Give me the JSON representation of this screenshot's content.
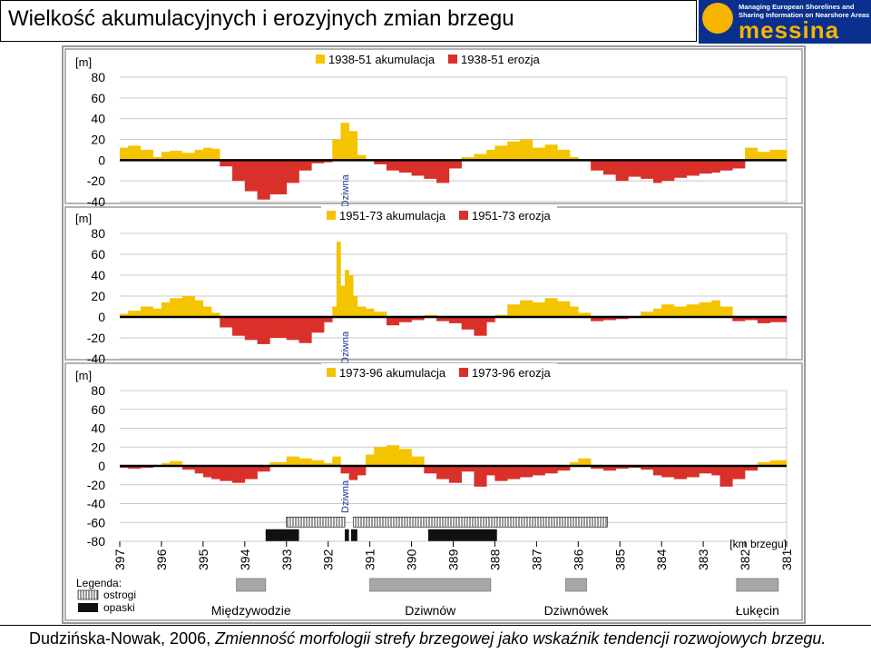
{
  "header": {
    "title": "Wielkość akumulacyjnych i erozyjnych zmian brzegu"
  },
  "logo": {
    "line1": "Managing European Shorelines and",
    "line2": "Sharing Information on Nearshore Areas",
    "word": "messina",
    "colors": {
      "background": "#0a2f8c",
      "accent": "#f5b400"
    }
  },
  "caption": {
    "author": "Dudzińska-Nowak, 2006, ",
    "title": "Zmienność morfologii strefy brzegowej jako wskaźnik tendencji rozwojowych brzegu."
  },
  "chart_data": [
    {
      "type": "area",
      "ylabel": "[m]",
      "ylim": [
        -40,
        80
      ],
      "yticks": [
        80,
        60,
        40,
        20,
        0,
        -20,
        -40
      ],
      "xlim": [
        397,
        381
      ],
      "grid": true,
      "legend": [
        "1938-51 akumulacja",
        "1938-51 erozja"
      ],
      "colors": {
        "accumulation": "#f5c400",
        "erosion": "#d9302a"
      },
      "annotation": "Dziwna",
      "annotation_km": 391.6,
      "x": [
        397,
        396.8,
        396.5,
        396.2,
        396,
        395.8,
        395.5,
        395.2,
        395,
        394.8,
        394.6,
        394.3,
        394,
        393.7,
        393.4,
        393,
        392.7,
        392.4,
        392.1,
        391.9,
        391.7,
        391.5,
        391.3,
        391.1,
        390.9,
        390.6,
        390.3,
        390,
        389.7,
        389.4,
        389.1,
        388.8,
        388.5,
        388.2,
        388,
        387.7,
        387.4,
        387.1,
        386.8,
        386.5,
        386.2,
        386,
        385.7,
        385.4,
        385.1,
        384.8,
        384.5,
        384.2,
        384,
        383.7,
        383.4,
        383.1,
        382.8,
        382.6,
        382.3,
        382,
        381.7,
        381.4,
        381
      ],
      "values": [
        12,
        14,
        10,
        3,
        8,
        9,
        7,
        10,
        12,
        11,
        -6,
        -20,
        -30,
        -38,
        -33,
        -22,
        -10,
        -3,
        -2,
        20,
        36,
        28,
        5,
        0,
        -4,
        -10,
        -12,
        -15,
        -18,
        -22,
        -8,
        3,
        6,
        10,
        14,
        18,
        20,
        12,
        15,
        10,
        3,
        0,
        -10,
        -14,
        -20,
        -16,
        -18,
        -22,
        -20,
        -17,
        -15,
        -13,
        -12,
        -10,
        -8,
        12,
        8,
        10,
        16
      ]
    },
    {
      "type": "area",
      "ylabel": "[m]",
      "ylim": [
        -40,
        80
      ],
      "yticks": [
        80,
        60,
        40,
        20,
        0,
        -20,
        -40
      ],
      "xlim": [
        397,
        381
      ],
      "grid": true,
      "legend": [
        "1951-73 akumulacja",
        "1951-73 erozja"
      ],
      "colors": {
        "accumulation": "#f5c400",
        "erosion": "#d9302a"
      },
      "annotation": "Dziwna",
      "annotation_km": 391.6,
      "x": [
        397,
        396.8,
        396.5,
        396.2,
        396,
        395.8,
        395.5,
        395.2,
        395,
        394.8,
        394.6,
        394.3,
        394,
        393.7,
        393.4,
        393,
        392.7,
        392.4,
        392.1,
        391.9,
        391.8,
        391.7,
        391.6,
        391.5,
        391.4,
        391.3,
        391.1,
        390.9,
        390.6,
        390.3,
        390,
        389.7,
        389.4,
        389.1,
        388.8,
        388.5,
        388.2,
        388,
        387.7,
        387.4,
        387.1,
        386.8,
        386.5,
        386.2,
        386,
        385.7,
        385.4,
        385.1,
        384.8,
        384.5,
        384.2,
        384,
        383.7,
        383.4,
        383.1,
        382.8,
        382.6,
        382.3,
        382,
        381.7,
        381.4,
        381
      ],
      "values": [
        3,
        6,
        10,
        8,
        14,
        18,
        20,
        16,
        10,
        4,
        -10,
        -18,
        -22,
        -26,
        -20,
        -22,
        -25,
        -15,
        -5,
        10,
        72,
        30,
        45,
        40,
        20,
        10,
        8,
        5,
        -8,
        -5,
        -3,
        2,
        -4,
        -6,
        -12,
        -18,
        -5,
        2,
        12,
        16,
        14,
        18,
        15,
        10,
        4,
        -4,
        -3,
        -2,
        -1,
        5,
        8,
        12,
        10,
        12,
        14,
        16,
        10,
        -4,
        -3,
        -6,
        -5,
        -6
      ]
    },
    {
      "type": "area",
      "ylabel": "[m]",
      "ylim": [
        -80,
        80
      ],
      "yticks": [
        80,
        60,
        40,
        20,
        0,
        -20,
        -40,
        -60,
        -80
      ],
      "xlim": [
        397,
        381
      ],
      "xlabel": "[km brzegu]",
      "xticks": [
        397,
        396,
        395,
        394,
        393,
        392,
        391,
        390,
        389,
        388,
        387,
        386,
        385,
        384,
        383,
        382,
        381
      ],
      "grid": true,
      "legend": [
        "1973-96 akumulacja",
        "1973-96 erozja"
      ],
      "colors": {
        "accumulation": "#f5c400",
        "erosion": "#d9302a"
      },
      "annotation": "Dziwna",
      "annotation_km": 391.6,
      "x": [
        397,
        396.8,
        396.5,
        396.2,
        396,
        395.8,
        395.5,
        395.2,
        395,
        394.8,
        394.6,
        394.3,
        394,
        393.7,
        393.4,
        393,
        392.7,
        392.4,
        392.1,
        391.9,
        391.7,
        391.5,
        391.3,
        391.1,
        390.9,
        390.6,
        390.3,
        390,
        389.7,
        389.4,
        389.1,
        388.8,
        388.5,
        388.2,
        388,
        387.7,
        387.4,
        387.1,
        386.8,
        386.5,
        386.2,
        386,
        385.7,
        385.4,
        385.1,
        384.8,
        384.5,
        384.2,
        384,
        383.7,
        383.4,
        383.1,
        382.8,
        382.6,
        382.3,
        382,
        381.7,
        381.4,
        381
      ],
      "values": [
        -2,
        -3,
        -2,
        0,
        3,
        5,
        -4,
        -8,
        -12,
        -14,
        -16,
        -18,
        -14,
        -6,
        4,
        10,
        8,
        6,
        3,
        10,
        -8,
        -15,
        -10,
        12,
        20,
        22,
        18,
        10,
        -8,
        -14,
        -18,
        -6,
        -22,
        -10,
        -16,
        -14,
        -12,
        -10,
        -8,
        -5,
        4,
        8,
        -3,
        -5,
        -3,
        -2,
        -4,
        -10,
        -12,
        -14,
        -12,
        -8,
        -10,
        -22,
        -14,
        -5,
        4,
        6,
        -4
      ],
      "legend_structures": [
        "Legenda:",
        "ostrogi",
        "opaski"
      ],
      "structures": {
        "ostrogi": [
          [
            393,
            391.6
          ],
          [
            391.4,
            385.3
          ]
        ],
        "opaski": [
          [
            393.5,
            392.7
          ],
          [
            391.6,
            391.5
          ],
          [
            391.45,
            391.3
          ],
          [
            389.6,
            387.95
          ]
        ]
      },
      "towns": [
        {
          "name": "Międzywodzie",
          "from": 394.2,
          "to": 393.5
        },
        {
          "name": "Dziwnów",
          "from": 391,
          "to": 388.1
        },
        {
          "name": "Dziwnówek",
          "from": 386.3,
          "to": 385.8
        },
        {
          "name": "Łukęcin",
          "from": 382.2,
          "to": 381.2
        }
      ]
    }
  ]
}
